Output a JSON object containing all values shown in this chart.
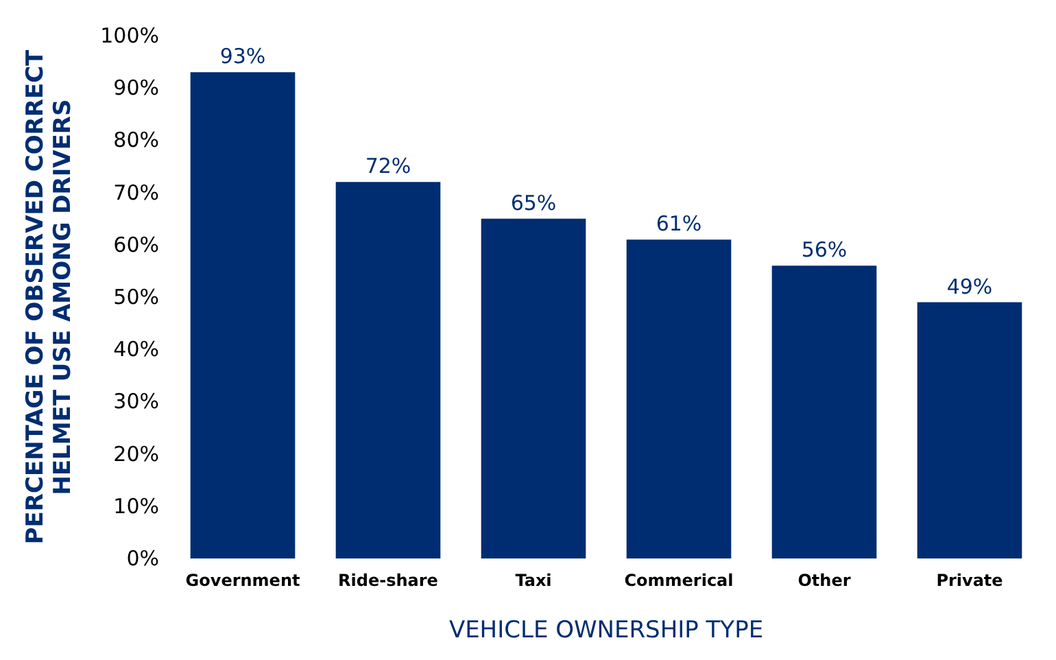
{
  "chart_data": {
    "type": "bar",
    "xlabel": "VEHICLE OWNERSHIP TYPE",
    "ylabel": "PERCENTAGE OF OBSERVED CORRECT\nHELMET USE AMONG DRIVERS",
    "categories": [
      "Government",
      "Ride-share",
      "Taxi",
      "Commerical",
      "Other",
      "Private"
    ],
    "values": [
      93,
      72,
      65,
      61,
      56,
      49
    ],
    "value_labels": [
      "93%",
      "72%",
      "65%",
      "61%",
      "56%",
      "49%"
    ],
    "color": "#002d72",
    "ylim": [
      0,
      100
    ],
    "yticks": [
      {
        "value": 0,
        "label": "0%"
      },
      {
        "value": 10,
        "label": "10%"
      },
      {
        "value": 20,
        "label": "20%"
      },
      {
        "value": 30,
        "label": "30%"
      },
      {
        "value": 40,
        "label": "40%"
      },
      {
        "value": 50,
        "label": "50%"
      },
      {
        "value": 60,
        "label": "60%"
      },
      {
        "value": 70,
        "label": "70%"
      },
      {
        "value": 80,
        "label": "80%"
      },
      {
        "value": 90,
        "label": "90%"
      },
      {
        "value": 100,
        "label": "100%"
      }
    ],
    "grid": false
  }
}
